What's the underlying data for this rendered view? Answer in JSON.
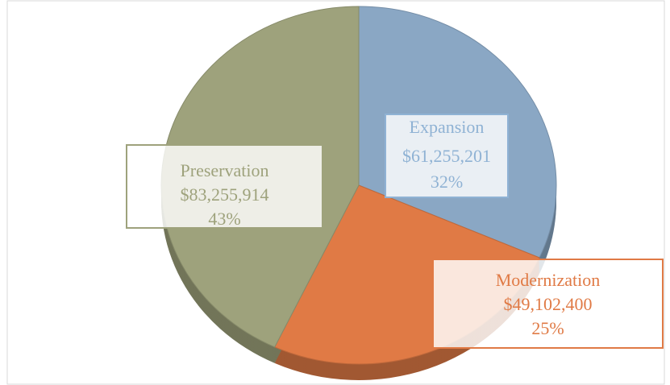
{
  "chart_data": {
    "type": "pie",
    "categories": [
      "Expansion",
      "Modernization",
      "Preservation"
    ],
    "values": [
      61255201,
      49102400,
      83255914
    ],
    "value_labels": [
      "$61,255,201",
      "$49,102,400",
      "$83,255,914"
    ],
    "percent_labels": [
      "32%",
      "25%",
      "43%"
    ],
    "colors": [
      "#8aa7c4",
      "#e07a45",
      "#9ea27c"
    ],
    "label_colors": [
      "#8fb2d4",
      "#e07a45",
      "#9ea27c"
    ],
    "start_angle": 0,
    "direction": "clockwise",
    "three_d": true
  }
}
